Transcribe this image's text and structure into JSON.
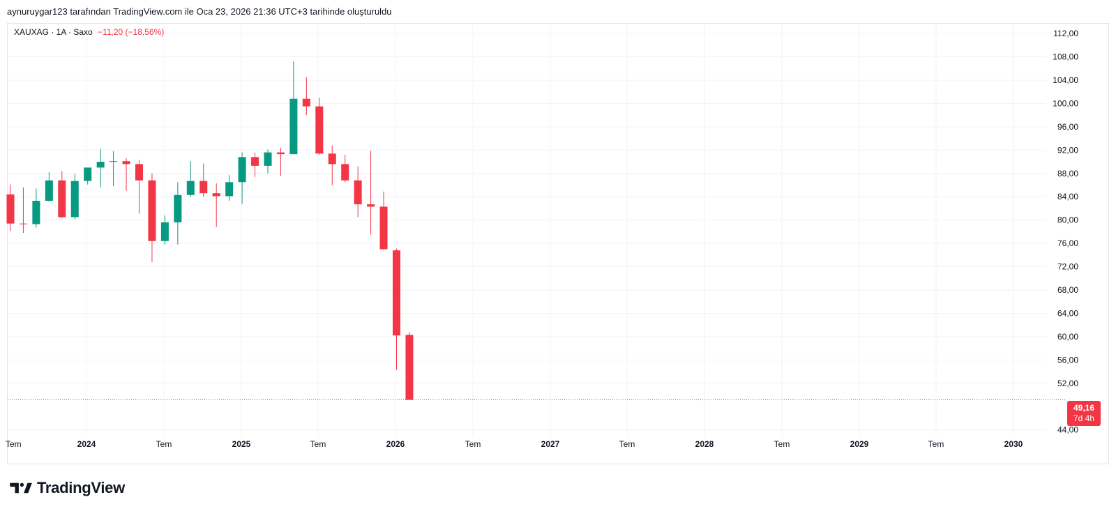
{
  "caption": "aynuruygar123 tarafından TradingView.com ile Oca 23, 2026 21:36 UTC+3 tarihinde oluşturuldu",
  "legend": {
    "symbol": "XAUXAG · 1A · Saxo",
    "change": "−11,20 (−18,56%)"
  },
  "last_price": {
    "value": "49,16",
    "countdown": "7d 4h",
    "color": "#f23645"
  },
  "brand": {
    "name": "TradingView",
    "icon": "tradingview-logo-icon"
  },
  "colors": {
    "up": "#089981",
    "down": "#f23645",
    "grid": "#f0f3fa",
    "axis_text": "#131722"
  },
  "chart_data": {
    "type": "candlestick",
    "timeframe": "1 month",
    "y_axis_labels": [
      "112,00",
      "108,00",
      "104,00",
      "100,00",
      "96,00",
      "92,00",
      "88,00",
      "84,00",
      "80,00",
      "76,00",
      "72,00",
      "68,00",
      "64,00",
      "60,00",
      "56,00",
      "52,00",
      "44,00"
    ],
    "y_range": [
      44,
      112
    ],
    "x_axis_labels": [
      "Tem",
      "2024",
      "Tem",
      "2025",
      "Tem",
      "2026",
      "Tem",
      "2027",
      "Tem",
      "2028",
      "Tem",
      "2029",
      "Tem",
      "2030"
    ],
    "candles": [
      {
        "period": "2023-06",
        "open": 84.4,
        "high": 86.1,
        "low": 78.1,
        "close": 79.4
      },
      {
        "period": "2023-07",
        "open": 79.4,
        "high": 85.6,
        "low": 77.8,
        "close": 79.3
      },
      {
        "period": "2023-08",
        "open": 79.3,
        "high": 85.4,
        "low": 78.7,
        "close": 83.3
      },
      {
        "period": "2023-09",
        "open": 83.3,
        "high": 88.2,
        "low": 83.1,
        "close": 86.8
      },
      {
        "period": "2023-10",
        "open": 86.8,
        "high": 88.4,
        "low": 80.3,
        "close": 80.5
      },
      {
        "period": "2023-11",
        "open": 80.5,
        "high": 87.9,
        "low": 80.1,
        "close": 86.7
      },
      {
        "period": "2023-12",
        "open": 86.7,
        "high": 89.0,
        "low": 86.1,
        "close": 89.0
      },
      {
        "period": "2024-01",
        "open": 89.0,
        "high": 92.2,
        "low": 85.6,
        "close": 90.0
      },
      {
        "period": "2024-02",
        "open": 90.0,
        "high": 91.8,
        "low": 85.8,
        "close": 90.1
      },
      {
        "period": "2024-03",
        "open": 90.1,
        "high": 90.6,
        "low": 85.0,
        "close": 89.6
      },
      {
        "period": "2024-04",
        "open": 89.6,
        "high": 90.3,
        "low": 81.1,
        "close": 86.8
      },
      {
        "period": "2024-05",
        "open": 86.8,
        "high": 88.0,
        "low": 72.8,
        "close": 76.4
      },
      {
        "period": "2024-06",
        "open": 76.4,
        "high": 80.8,
        "low": 75.8,
        "close": 79.6
      },
      {
        "period": "2024-07",
        "open": 79.6,
        "high": 86.5,
        "low": 75.8,
        "close": 84.3
      },
      {
        "period": "2024-08",
        "open": 84.3,
        "high": 90.1,
        "low": 84.0,
        "close": 86.7
      },
      {
        "period": "2024-09",
        "open": 86.7,
        "high": 89.7,
        "low": 84.0,
        "close": 84.6
      },
      {
        "period": "2024-10",
        "open": 84.6,
        "high": 86.3,
        "low": 78.8,
        "close": 84.1
      },
      {
        "period": "2024-11",
        "open": 84.1,
        "high": 87.7,
        "low": 83.3,
        "close": 86.5
      },
      {
        "period": "2024-12",
        "open": 86.5,
        "high": 91.6,
        "low": 82.8,
        "close": 90.8
      },
      {
        "period": "2025-01",
        "open": 90.8,
        "high": 91.6,
        "low": 87.4,
        "close": 89.3
      },
      {
        "period": "2025-02",
        "open": 89.3,
        "high": 92.1,
        "low": 88.0,
        "close": 91.6
      },
      {
        "period": "2025-03",
        "open": 91.6,
        "high": 92.4,
        "low": 87.6,
        "close": 91.3
      },
      {
        "period": "2025-04",
        "open": 91.3,
        "high": 107.2,
        "low": 91.3,
        "close": 100.8
      },
      {
        "period": "2025-05",
        "open": 100.8,
        "high": 104.5,
        "low": 98.0,
        "close": 99.5
      },
      {
        "period": "2025-06",
        "open": 99.5,
        "high": 101.0,
        "low": 91.2,
        "close": 91.4
      },
      {
        "period": "2025-07",
        "open": 91.4,
        "high": 92.8,
        "low": 86.0,
        "close": 89.6
      },
      {
        "period": "2025-08",
        "open": 89.6,
        "high": 91.2,
        "low": 86.5,
        "close": 86.8
      },
      {
        "period": "2025-09",
        "open": 86.8,
        "high": 89.2,
        "low": 80.5,
        "close": 82.7
      },
      {
        "period": "2025-10",
        "open": 82.7,
        "high": 91.9,
        "low": 77.5,
        "close": 82.3
      },
      {
        "period": "2025-11",
        "open": 82.3,
        "high": 84.9,
        "low": 74.9,
        "close": 75.0
      },
      {
        "period": "2025-12",
        "open": 74.8,
        "high": 75.1,
        "low": 54.3,
        "close": 60.2
      },
      {
        "period": "2026-01",
        "open": 60.3,
        "high": 60.8,
        "low": 49.2,
        "close": 49.16
      }
    ]
  }
}
